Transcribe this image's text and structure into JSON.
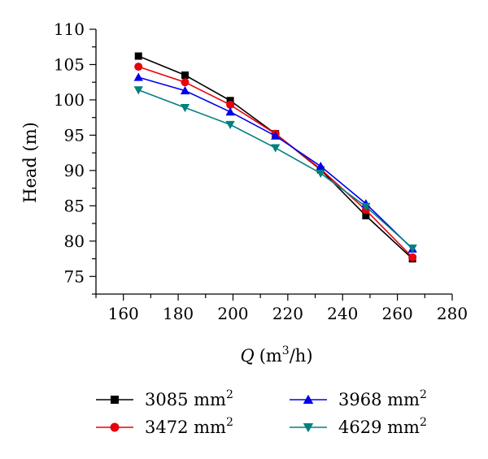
{
  "chart_data": {
    "type": "line",
    "title": "",
    "xlabel": {
      "var": "Q",
      "unit_pre": "(m",
      "unit_sup": "3",
      "unit_post": "/h)"
    },
    "ylabel": "Head (m)",
    "xlim": [
      150,
      280
    ],
    "ylim": [
      72.5,
      110
    ],
    "x_ticks": [
      160,
      180,
      200,
      220,
      240,
      260,
      280
    ],
    "y_ticks": [
      75,
      80,
      85,
      90,
      95,
      100,
      105,
      110
    ],
    "x": [
      165.5,
      182.5,
      199,
      215.5,
      232,
      248.5,
      265.5
    ],
    "series": [
      {
        "name": "3085 mm",
        "sup": "2",
        "color": "#000000",
        "marker": "square",
        "values": [
          106.2,
          103.5,
          99.9,
          95.2,
          90.1,
          83.6,
          77.5
        ]
      },
      {
        "name": "3472 mm",
        "sup": "2",
        "color": "#e8000b",
        "marker": "circle",
        "values": [
          104.7,
          102.5,
          99.3,
          95.2,
          90.2,
          84.4,
          77.7
        ]
      },
      {
        "name": "3968 mm",
        "sup": "2",
        "color": "#0000ee",
        "marker": "triangle-up",
        "values": [
          103.2,
          101.3,
          98.3,
          94.9,
          90.6,
          85.3,
          78.9
        ]
      },
      {
        "name": "4629 mm",
        "sup": "2",
        "color": "#008080",
        "marker": "triangle-down",
        "values": [
          101.4,
          98.9,
          96.5,
          93.2,
          89.6,
          84.9,
          79.0
        ]
      }
    ]
  }
}
